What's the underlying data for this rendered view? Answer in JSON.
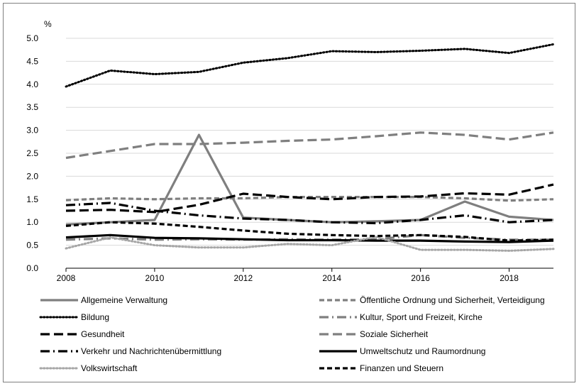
{
  "chart_data": {
    "type": "line",
    "ylabel": "%",
    "ylim": [
      0,
      5
    ],
    "yticks": [
      "0.0",
      "0.5",
      "1.0",
      "1.5",
      "2.0",
      "2.5",
      "3.0",
      "3.5",
      "4.0",
      "4.5",
      "5.0"
    ],
    "x": [
      2008,
      2009,
      2010,
      2011,
      2012,
      2013,
      2014,
      2015,
      2016,
      2017,
      2018,
      2019
    ],
    "xticks": [
      "2008",
      "2010",
      "2012",
      "2014",
      "2016",
      "2018"
    ],
    "grid": "horizontal",
    "legend_position": "bottom",
    "series": [
      {
        "name": "Allgemeine Verwaltung",
        "color": "#7f7f7f",
        "style": "solid",
        "values": [
          0.95,
          1.0,
          1.05,
          2.9,
          1.1,
          1.05,
          1.0,
          1.02,
          1.05,
          1.45,
          1.12,
          1.05
        ]
      },
      {
        "name": "Öffentliche Ordnung und Sicherheit, Verteidigung",
        "color": "#7f7f7f",
        "style": "dash",
        "values": [
          1.48,
          1.52,
          1.5,
          1.52,
          1.52,
          1.55,
          1.55,
          1.55,
          1.55,
          1.52,
          1.47,
          1.5
        ]
      },
      {
        "name": "Bildung",
        "color": "#000000",
        "style": "dot",
        "values": [
          3.95,
          4.3,
          4.22,
          4.27,
          4.47,
          4.57,
          4.72,
          4.7,
          4.73,
          4.77,
          4.68,
          4.87
        ]
      },
      {
        "name": "Kultur, Sport und Freizeit, Kirche",
        "color": "#7f7f7f",
        "style": "longdashdot",
        "values": [
          0.62,
          0.65,
          0.62,
          0.63,
          0.62,
          0.63,
          0.62,
          0.63,
          0.72,
          0.66,
          0.62,
          0.62
        ]
      },
      {
        "name": "Gesundheit",
        "color": "#000000",
        "style": "longdash",
        "values": [
          1.25,
          1.27,
          1.22,
          1.38,
          1.62,
          1.55,
          1.5,
          1.55,
          1.56,
          1.63,
          1.6,
          1.82
        ]
      },
      {
        "name": "Soziale Sicherheit",
        "color": "#7f7f7f",
        "style": "longdash",
        "values": [
          2.4,
          2.55,
          2.7,
          2.7,
          2.73,
          2.77,
          2.8,
          2.87,
          2.95,
          2.9,
          2.8,
          2.95
        ]
      },
      {
        "name": "Verkehr und Nachrichtenübermittlung",
        "color": "#000000",
        "style": "longdashdot",
        "values": [
          1.37,
          1.42,
          1.25,
          1.15,
          1.08,
          1.05,
          1.0,
          0.98,
          1.05,
          1.15,
          1.0,
          1.05
        ]
      },
      {
        "name": "Umweltschutz und Raumordnung",
        "color": "#000000",
        "style": "solid",
        "values": [
          0.67,
          0.72,
          0.66,
          0.65,
          0.63,
          0.61,
          0.61,
          0.6,
          0.6,
          0.58,
          0.57,
          0.6
        ]
      },
      {
        "name": "Volkswirtschaft",
        "color": "#a6a6a6",
        "style": "dot",
        "values": [
          0.43,
          0.67,
          0.5,
          0.45,
          0.45,
          0.53,
          0.5,
          0.68,
          0.4,
          0.4,
          0.38,
          0.42
        ]
      },
      {
        "name": "Finanzen und Steuern",
        "color": "#000000",
        "style": "dash",
        "values": [
          0.92,
          1.0,
          0.97,
          0.9,
          0.82,
          0.75,
          0.72,
          0.7,
          0.72,
          0.68,
          0.6,
          0.62
        ]
      }
    ]
  }
}
